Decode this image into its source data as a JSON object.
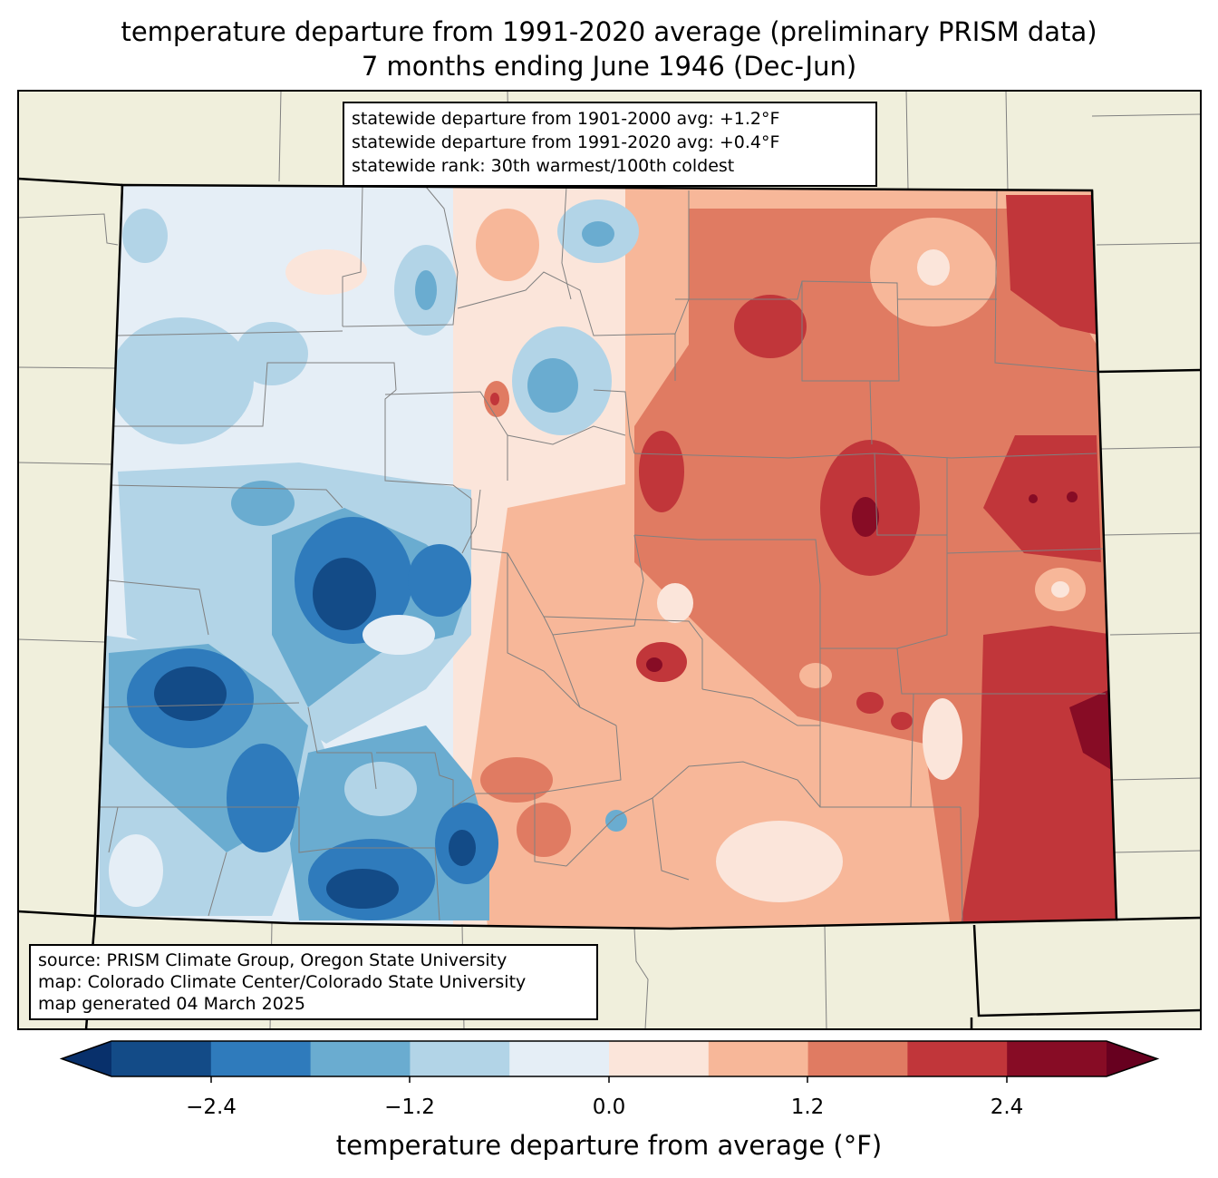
{
  "title": {
    "line1": "temperature departure from 1991-2020 average (preliminary PRISM data)",
    "line2": "7 months ending June 1946 (Dec-Jun)"
  },
  "stats": {
    "line1": "statewide departure from 1901-2000 avg: +1.2°F",
    "line2": "statewide departure from 1991-2020 avg: +0.4°F",
    "line3": "statewide rank: 30th warmest/100th coldest"
  },
  "source": {
    "line1": "source: PRISM Climate Group, Oregon State University",
    "line2": "map: Colorado Climate Center/Colorado State University",
    "line3": "map generated 04 March 2025"
  },
  "colorbar": {
    "label": "temperature departure from average (°F)",
    "ticks": [
      "−2.4",
      "−1.2",
      "0.0",
      "1.2",
      "2.4"
    ],
    "colors": [
      "#08306b",
      "#134b87",
      "#2f7bbc",
      "#6aacd0",
      "#b2d4e7",
      "#e5eef6",
      "#fbe5da",
      "#f7b799",
      "#e07b62",
      "#c1363a",
      "#870c25",
      "#67001f"
    ]
  },
  "map": {
    "background_color": "#f0efdc",
    "county_line_color": "#808080"
  }
}
